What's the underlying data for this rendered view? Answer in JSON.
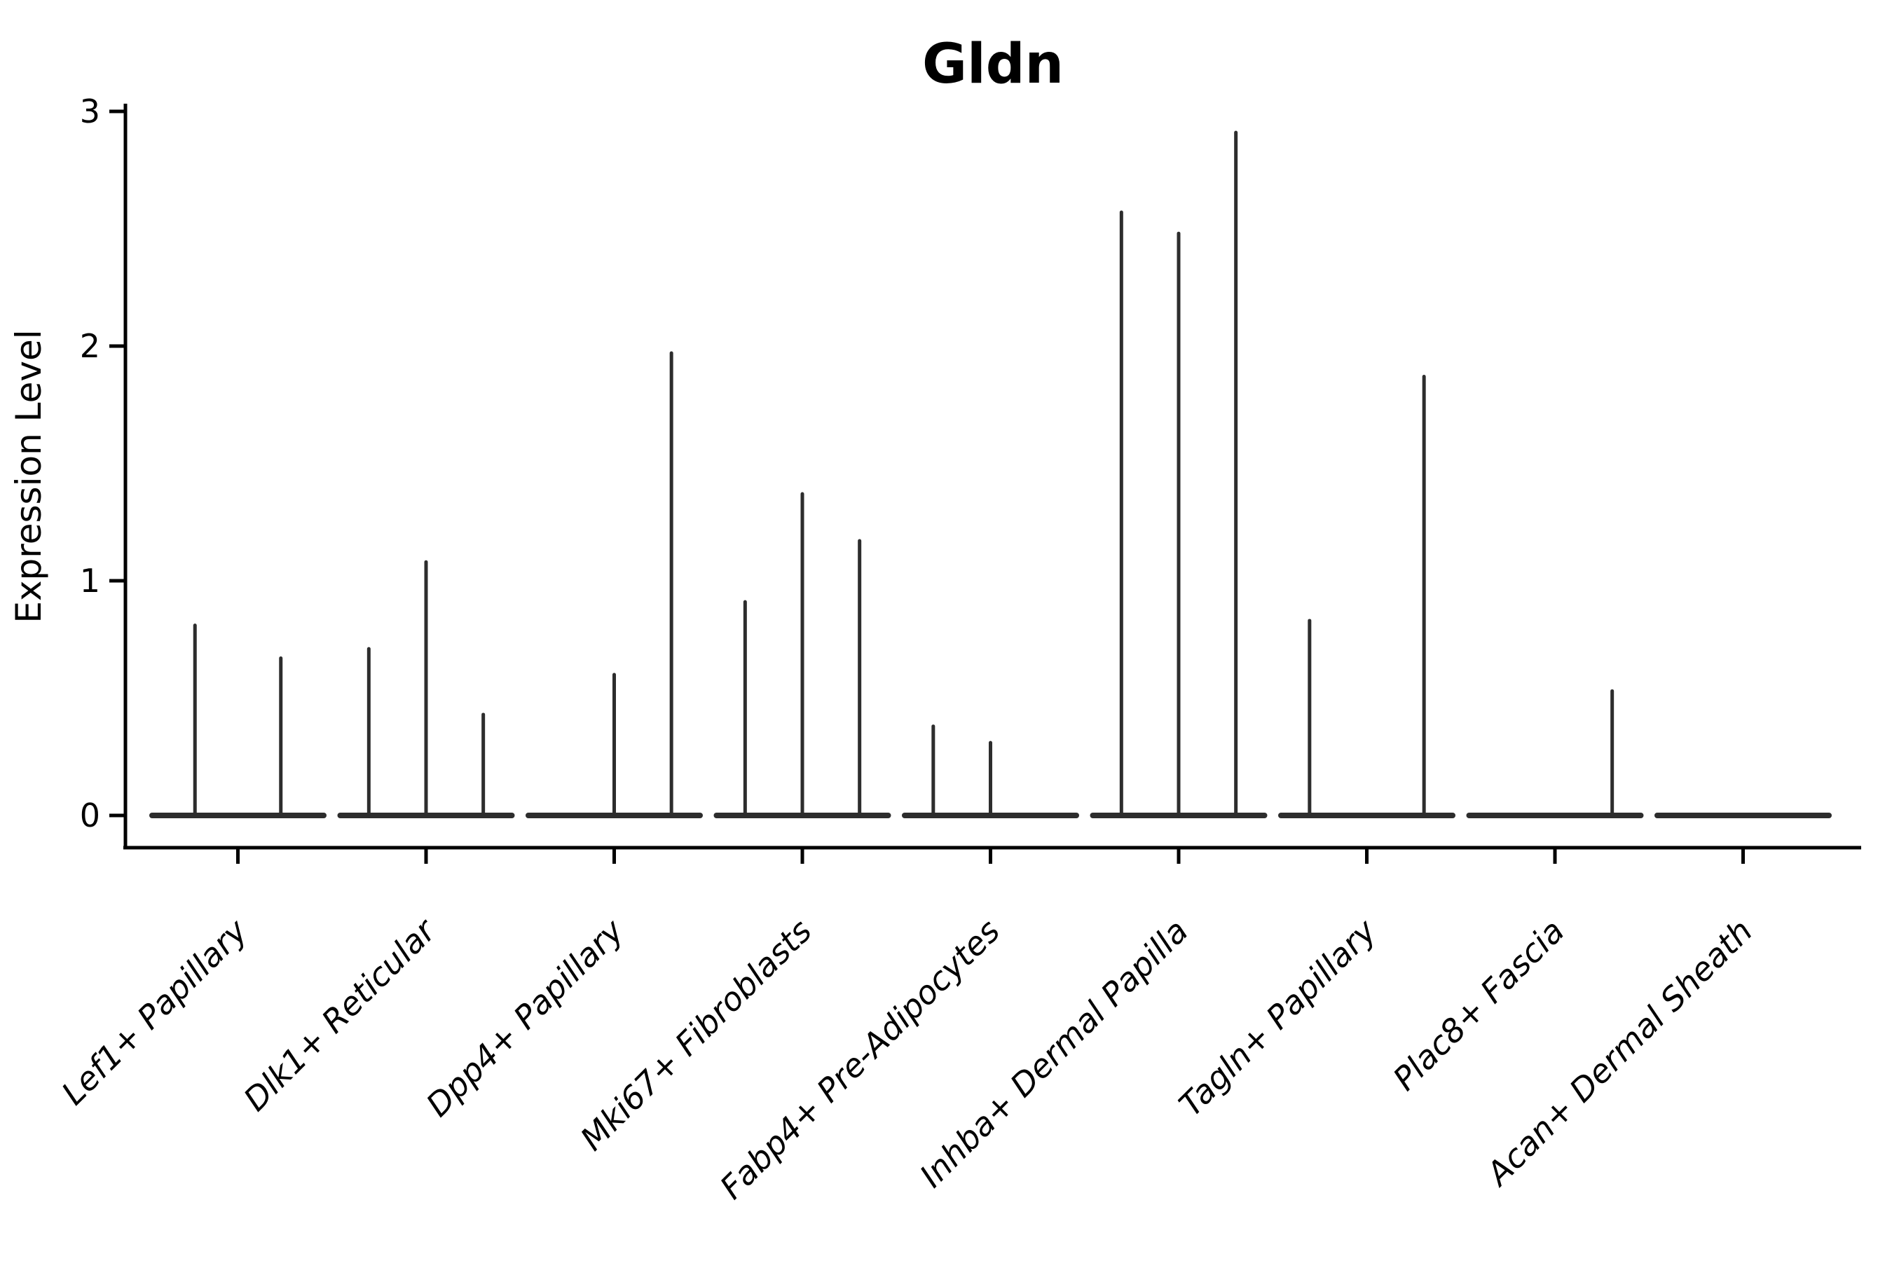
{
  "title": "Gldn",
  "y_axis": {
    "label": "Expression Level",
    "tick_labels": [
      "0",
      "1",
      "2",
      "3"
    ]
  },
  "chart_data": {
    "type": "violin",
    "title": "Gldn",
    "xlabel": "",
    "ylabel": "Expression Level",
    "ylim": [
      0,
      3
    ],
    "yticks": [
      0,
      1,
      2,
      3
    ],
    "grid": false,
    "legend": "none",
    "style_note": "collapsed (spike-like) violins: flat baseline at 0 with thin vertical density spikes; dark gray on white",
    "categories": [
      "Lef1+ Papillary",
      "Dlk1+ Reticular",
      "Dpp4+ Papillary",
      "Mki67+ Fibroblasts",
      "Fabp4+ Pre-Adipocytes",
      "Inhba+ Dermal Papilla",
      "Tagln+ Papillary",
      "Plac8+ Fascia",
      "Acan+ Dermal Sheath"
    ],
    "groups": [
      {
        "label": "Lef1+ Papillary",
        "violin_max_expression": [
          0.81,
          0.67
        ]
      },
      {
        "label": "Dlk1+ Reticular",
        "violin_max_expression": [
          0.71,
          1.08,
          0.43
        ]
      },
      {
        "label": "Dpp4+ Papillary",
        "violin_max_expression": [
          0,
          0.6,
          1.97
        ]
      },
      {
        "label": "Mki67+ Fibroblasts",
        "violin_max_expression": [
          0.91,
          1.37,
          1.17
        ]
      },
      {
        "label": "Fabp4+ Pre-Adipocytes",
        "violin_max_expression": [
          0.38,
          0.31,
          0
        ]
      },
      {
        "label": "Inhba+ Dermal Papilla",
        "violin_max_expression": [
          2.57,
          2.48,
          2.91
        ]
      },
      {
        "label": "Tagln+ Papillary",
        "violin_max_expression": [
          0.83,
          0,
          1.87
        ]
      },
      {
        "label": "Plac8+ Fascia",
        "violin_max_expression": [
          0,
          0,
          0.53
        ]
      },
      {
        "label": "Acan+ Dermal Sheath",
        "violin_max_expression": [
          0,
          0,
          0
        ]
      }
    ],
    "colors": {
      "violin_stroke": "#2d2d2d",
      "axis": "#000000",
      "background": "#ffffff"
    }
  }
}
